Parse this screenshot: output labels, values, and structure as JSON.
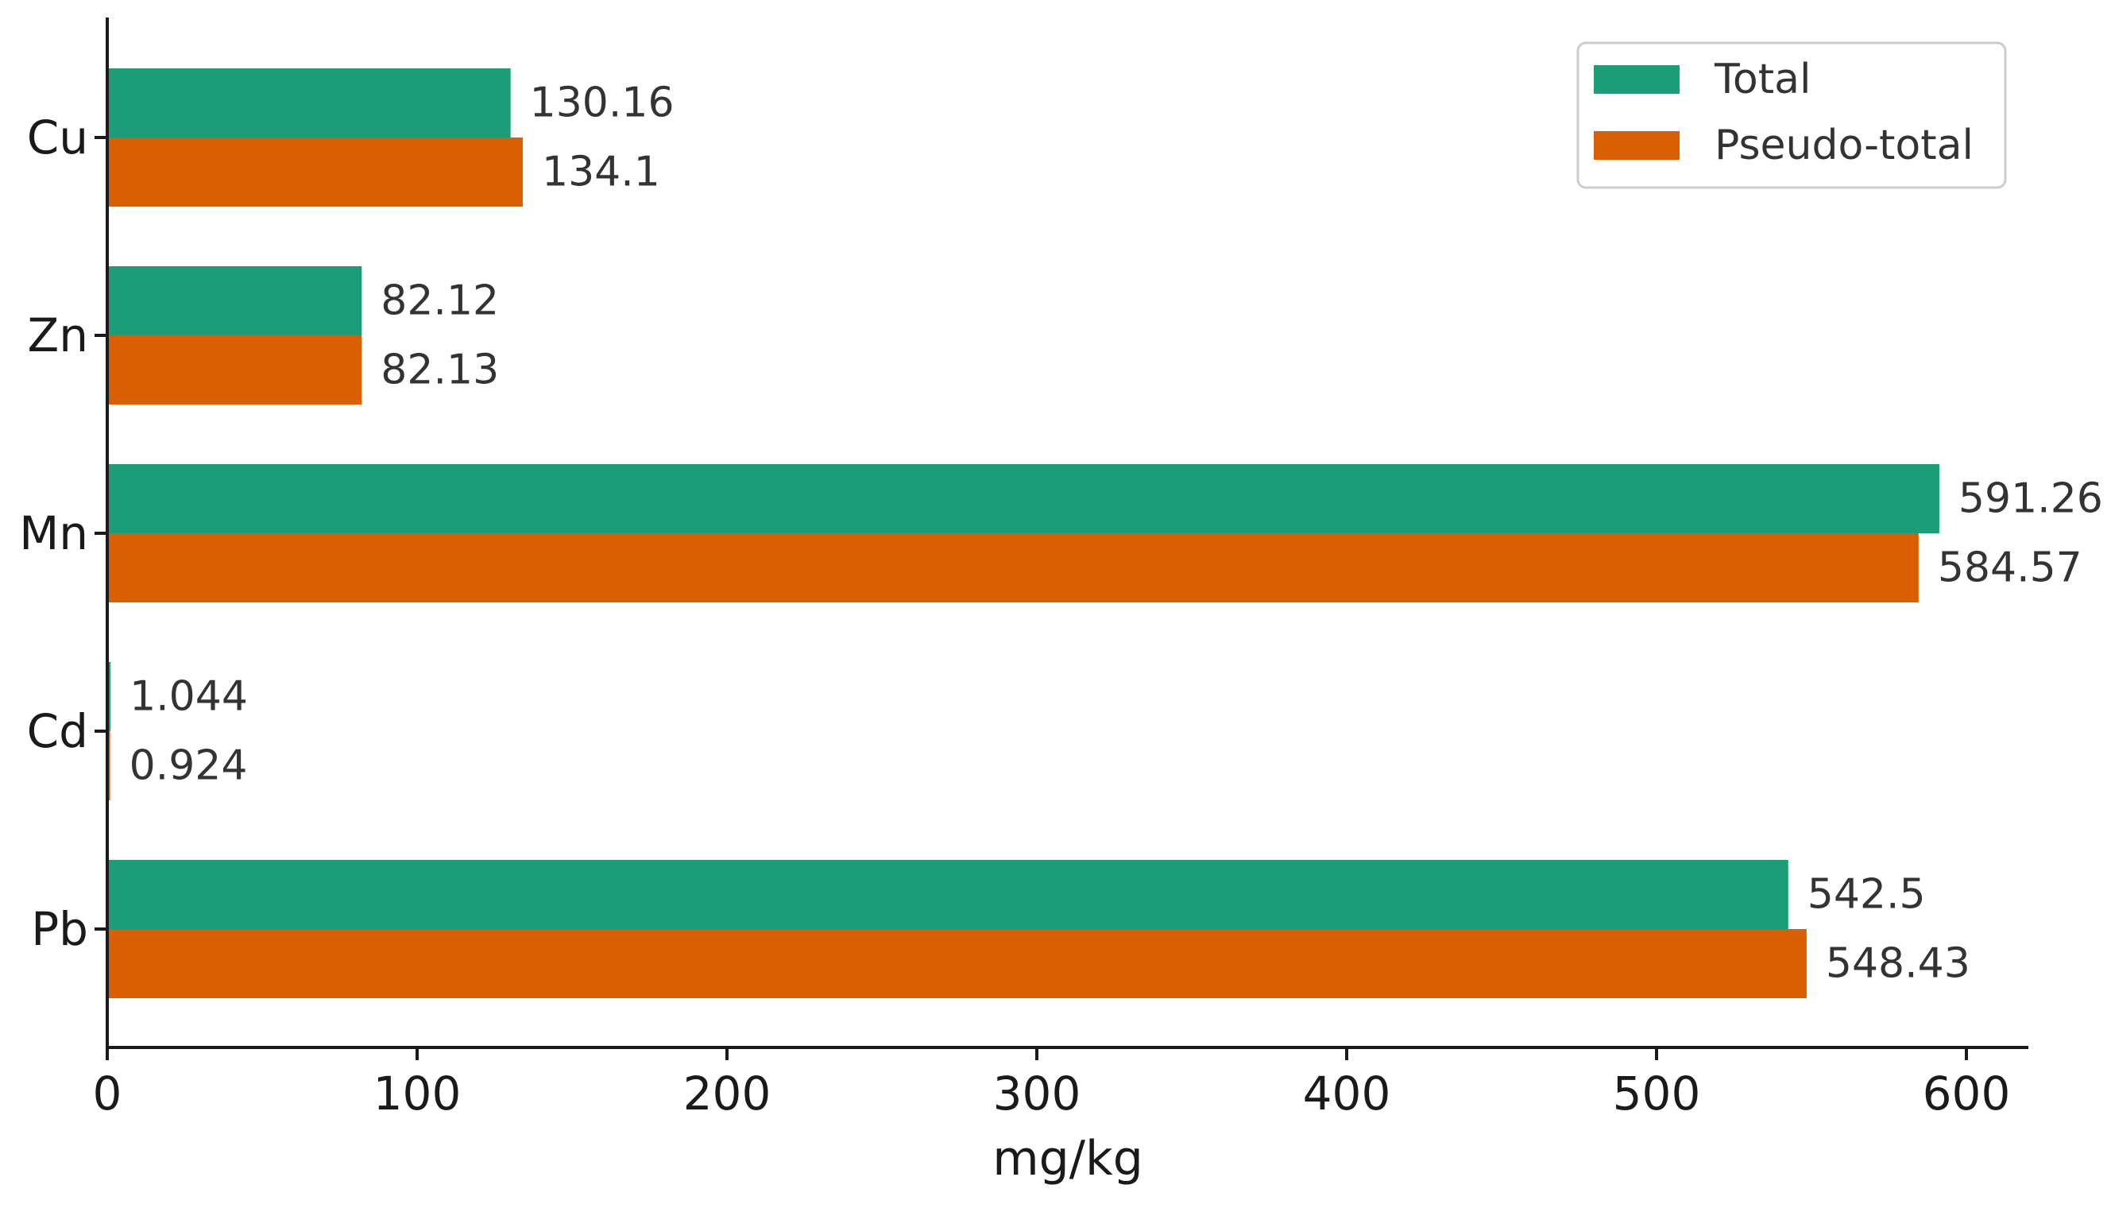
{
  "chart_data": {
    "type": "bar",
    "orientation": "horizontal",
    "categories": [
      "Cu",
      "Zn",
      "Mn",
      "Cd",
      "Pb"
    ],
    "series": [
      {
        "name": "Total",
        "color": "#1b9e77",
        "values": [
          130.16,
          82.12,
          591.26,
          1.044,
          542.5
        ],
        "labels": [
          "130.16",
          "82.12",
          "591.26",
          "1.044",
          "542.5"
        ]
      },
      {
        "name": "Pseudo-total",
        "color": "#d95f02",
        "values": [
          134.1,
          82.13,
          584.57,
          0.924,
          548.43
        ],
        "labels": [
          "134.1",
          "82.13",
          "584.57",
          "0.924",
          "548.43"
        ]
      }
    ],
    "xlabel": "mg/kg",
    "ylabel": "",
    "xlim": [
      0,
      620
    ],
    "xticks": [
      0,
      100,
      200,
      300,
      400,
      500,
      600
    ],
    "grid": false,
    "legend_position": "top-right"
  }
}
